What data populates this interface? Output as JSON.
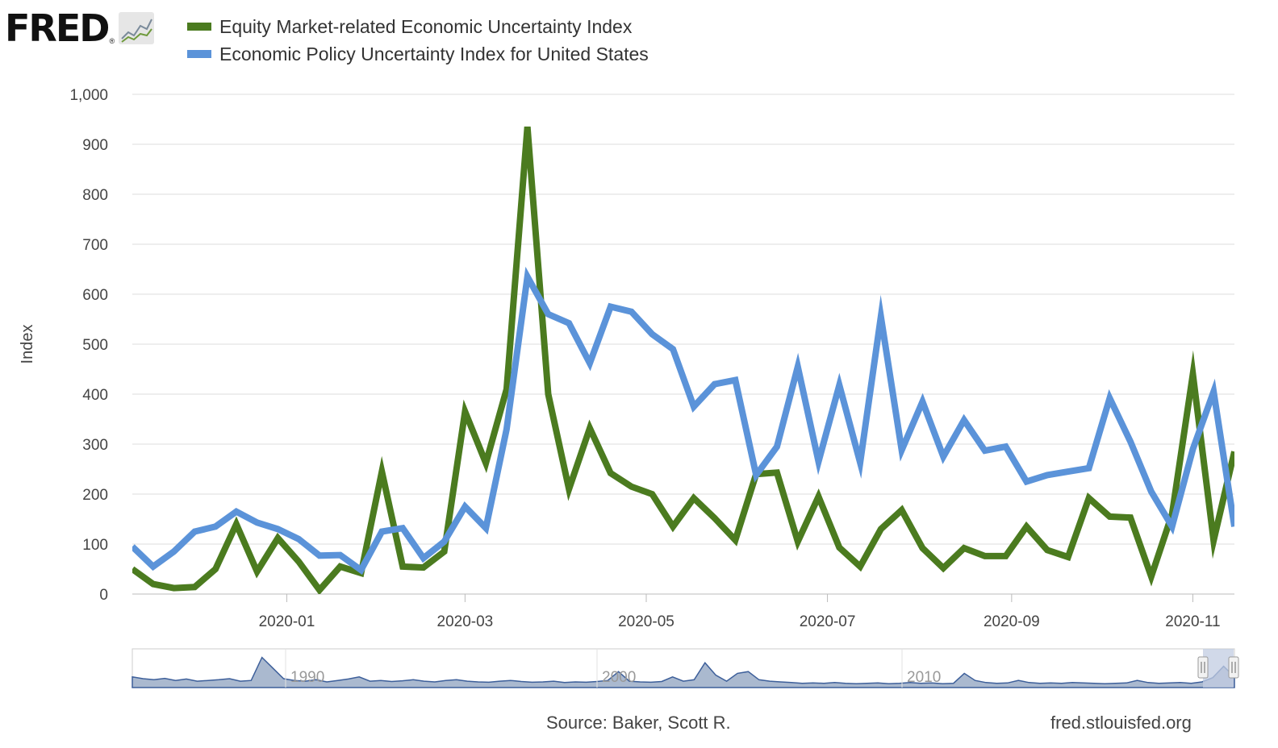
{
  "header": {
    "logo_text": "FRED",
    "logo_mark": "®",
    "logo_icon": "chart-line-icon"
  },
  "chart_data": {
    "type": "line",
    "ylabel": "Index",
    "ylim": [
      0,
      1000
    ],
    "yticks": [
      "0",
      "100",
      "200",
      "300",
      "400",
      "500",
      "600",
      "700",
      "800",
      "900",
      "1,000"
    ],
    "yticks_values": [
      0,
      100,
      200,
      300,
      400,
      500,
      600,
      700,
      800,
      900,
      1000
    ],
    "x_tick_labels": [
      "2020-01",
      "2020-03",
      "2020-05",
      "2020-07",
      "2020-09",
      "2020-11"
    ],
    "x_tick_dates": [
      "2020-01-01",
      "2020-03-01",
      "2020-05-01",
      "2020-07-01",
      "2020-09-01",
      "2020-11-01"
    ],
    "x_range": [
      "2019-11-10",
      "2020-11-15"
    ],
    "grid": true,
    "legend_position": "top-left",
    "x": [
      "2019-11-10",
      "2019-11-17",
      "2019-11-24",
      "2019-12-01",
      "2019-12-08",
      "2019-12-15",
      "2019-12-22",
      "2019-12-29",
      "2020-01-05",
      "2020-01-12",
      "2020-01-19",
      "2020-01-26",
      "2020-02-02",
      "2020-02-09",
      "2020-02-16",
      "2020-02-23",
      "2020-03-01",
      "2020-03-08",
      "2020-03-15",
      "2020-03-22",
      "2020-03-29",
      "2020-04-05",
      "2020-04-12",
      "2020-04-19",
      "2020-04-26",
      "2020-05-03",
      "2020-05-10",
      "2020-05-17",
      "2020-05-24",
      "2020-05-31",
      "2020-06-07",
      "2020-06-14",
      "2020-06-21",
      "2020-06-28",
      "2020-07-05",
      "2020-07-12",
      "2020-07-19",
      "2020-07-26",
      "2020-08-02",
      "2020-08-09",
      "2020-08-16",
      "2020-08-23",
      "2020-08-30",
      "2020-09-06",
      "2020-09-13",
      "2020-09-20",
      "2020-09-27",
      "2020-10-04",
      "2020-10-11",
      "2020-10-18",
      "2020-10-25",
      "2020-11-01",
      "2020-11-08",
      "2020-11-15"
    ],
    "series": [
      {
        "name": "Equity Market-related Economic Uncertainty Index",
        "color": "#4b7b1f",
        "values": [
          50,
          20,
          12,
          14,
          50,
          140,
          45,
          112,
          65,
          8,
          55,
          42,
          245,
          55,
          53,
          85,
          365,
          262,
          410,
          935,
          400,
          210,
          332,
          242,
          215,
          200,
          135,
          192,
          152,
          108,
          240,
          243,
          105,
          195,
          93,
          55,
          130,
          168,
          92,
          52,
          92,
          76,
          76,
          135,
          88,
          74,
          192,
          155,
          153,
          35,
          160,
          440,
          107,
          285
        ]
      },
      {
        "name": "Economic Policy Uncertainty Index for United States",
        "color": "#5b93d9",
        "values": [
          95,
          55,
          85,
          125,
          135,
          165,
          143,
          130,
          110,
          77,
          78,
          48,
          125,
          132,
          72,
          105,
          175,
          132,
          330,
          635,
          560,
          542,
          462,
          575,
          565,
          520,
          490,
          375,
          420,
          428,
          238,
          295,
          455,
          265,
          418,
          263,
          555,
          288,
          385,
          275,
          348,
          287,
          295,
          225,
          238,
          245,
          252,
          392,
          305,
          205,
          135,
          290,
          405,
          135
        ]
      }
    ],
    "navigator": {
      "x_labels": [
        "1990",
        "2000",
        "2010"
      ],
      "range_label_icons": [
        "left-handle-icon",
        "right-handle-icon"
      ]
    }
  },
  "footer": {
    "source": "Source: Baker, Scott R.",
    "site": "fred.stlouisfed.org"
  },
  "colors": {
    "grid": "#dddddd",
    "navigator_fill": "#aab9cf",
    "navigator_line": "#3d5f9a",
    "navigator_selection": "#c2cce1"
  }
}
